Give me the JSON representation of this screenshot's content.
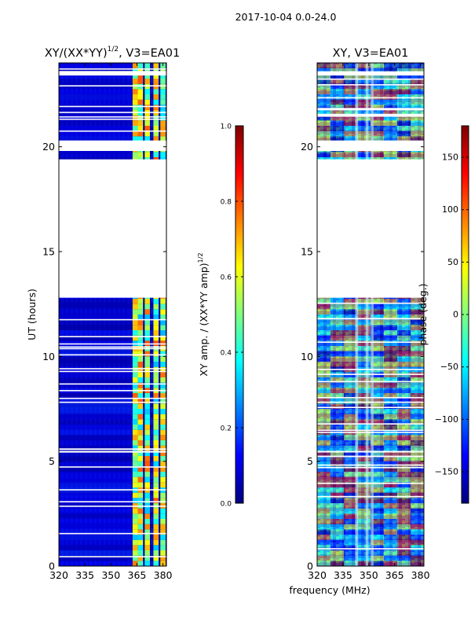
{
  "suptitle": "2017-10-04 0.0-24.0",
  "shared_xlabel": "frequency (MHz)",
  "chart_data": [
    {
      "type": "heatmap",
      "title": "XY/(XX*YY)^1/2, V3=EA01",
      "title_main": "XY/(XX*YY)",
      "title_sup": "1/2",
      "title_tail": ", V3=EA01",
      "xlabel": "frequency (MHz)",
      "ylabel": "UT (hours)",
      "xlim": [
        320,
        382
      ],
      "ylim": [
        0,
        24
      ],
      "xticks": [
        320,
        335,
        350,
        365,
        380
      ],
      "yticks": [
        0,
        5,
        10,
        15,
        20
      ],
      "colormap": "jet",
      "gap_hours": [
        [
          12.8,
          19.4
        ],
        [
          19.8,
          20.3
        ],
        [
          23.4,
          23.6
        ]
      ],
      "bright_channels_mhz": [
        364,
        367,
        371,
        376,
        380
      ],
      "colorbar": {
        "label_main": "XY amp. / (XX*YY amp)",
        "label_sup": "1/2",
        "range": [
          0.0,
          1.0
        ],
        "ticks": [
          "0.0",
          "0.2",
          "0.4",
          "0.6",
          "0.8",
          "1.0"
        ],
        "tick_values": [
          0.0,
          0.2,
          0.4,
          0.6,
          0.8,
          1.0
        ]
      }
    },
    {
      "type": "heatmap",
      "title": "XY, V3=EA01",
      "xlabel": "frequency (MHz)",
      "ylabel": "",
      "xlim": [
        320,
        382
      ],
      "ylim": [
        0,
        24
      ],
      "xticks": [
        320,
        335,
        350,
        365,
        380
      ],
      "yticks": [
        0,
        5,
        10,
        15,
        20
      ],
      "colormap": "jet",
      "gap_hours": [
        [
          12.8,
          19.4
        ],
        [
          19.8,
          20.3
        ],
        [
          23.4,
          23.6
        ]
      ],
      "colorbar": {
        "label": "phase (deg.)",
        "range": [
          -180,
          180
        ],
        "ticks": [
          "-150",
          "-100",
          "-50",
          "0",
          "50",
          "100",
          "150"
        ],
        "tick_values": [
          -150,
          -100,
          -50,
          0,
          50,
          100,
          150
        ]
      }
    }
  ]
}
